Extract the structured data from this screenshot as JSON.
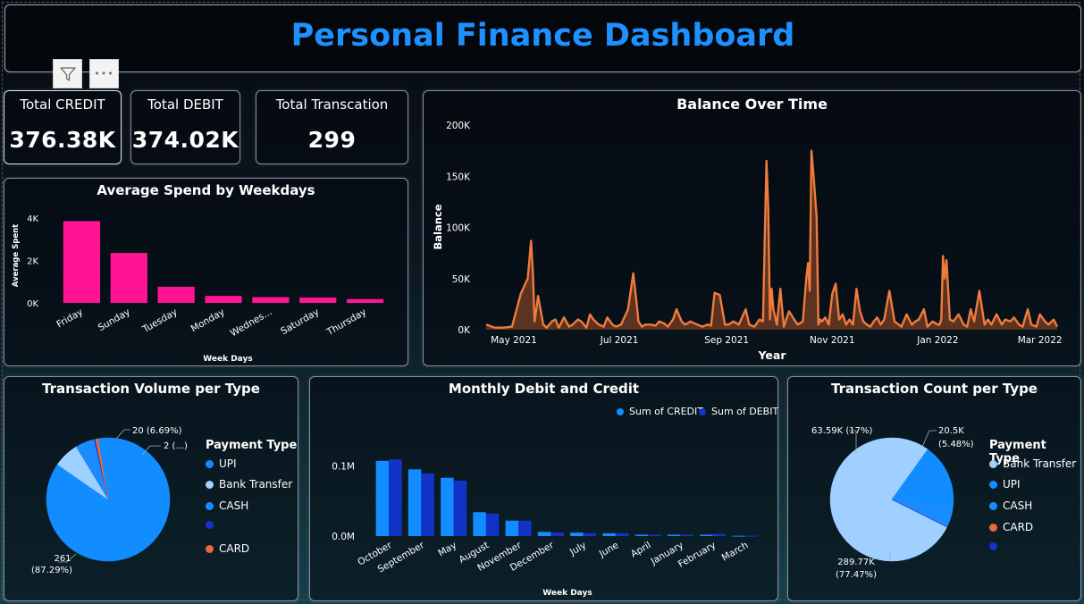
{
  "header": {
    "title": "Personal Finance Dashboard"
  },
  "toolbar": {
    "filter_icon": "filter-icon",
    "more_icon": "more-options-icon",
    "more_label": "•••"
  },
  "kpis": {
    "credit": {
      "label": "Total CREDIT",
      "value": "376.38K"
    },
    "debit": {
      "label": "Total DEBIT",
      "value": "374.02K"
    },
    "transactions": {
      "label": "Total Transcation",
      "value": "299"
    }
  },
  "colors": {
    "title": "#1e90ff",
    "pink": "#ff1493",
    "orange": "#f07b3c",
    "upi": "#118dff",
    "bank": "#9fd0ff",
    "cash": "#1a8cff",
    "debit": "#1233c8",
    "card": "#e8693a"
  },
  "chart_data": [
    {
      "id": "weekday",
      "type": "bar",
      "title": "Average Spend by Weekdays",
      "xlabel": "Week Days",
      "ylabel": "Average Spent",
      "categories": [
        "Friday",
        "Sunday",
        "Tuesday",
        "Monday",
        "Wednes...",
        "Saturday",
        "Thursday"
      ],
      "values": [
        3850,
        2350,
        760,
        330,
        270,
        250,
        180
      ],
      "ylim": [
        0,
        4500
      ],
      "yticks": [
        0,
        2000,
        4000
      ],
      "ytick_labels": [
        "0K",
        "2K",
        "4K"
      ]
    },
    {
      "id": "balance",
      "type": "area",
      "title": "Balance Over Time",
      "xlabel": "Year",
      "ylabel": "Balance",
      "ylim": [
        0,
        200000
      ],
      "yticks": [
        0,
        50000,
        100000,
        150000,
        200000
      ],
      "ytick_labels": [
        "0K",
        "50K",
        "100K",
        "150K",
        "200K"
      ],
      "xlim": [
        0,
        330
      ],
      "xticks": [
        16,
        77,
        139,
        200,
        261,
        320
      ],
      "xtick_labels": [
        "May 2021",
        "Jul 2021",
        "Sep 2021",
        "Nov 2021",
        "Jan 2022",
        "Mar 2022"
      ],
      "x": [
        0,
        5,
        10,
        15,
        20,
        24,
        26,
        27,
        28,
        29,
        30,
        33,
        35,
        38,
        40,
        42,
        45,
        48,
        50,
        53,
        55,
        58,
        60,
        62,
        65,
        68,
        70,
        73,
        75,
        78,
        82,
        85,
        87,
        88,
        90,
        92,
        95,
        98,
        100,
        103,
        105,
        108,
        110,
        113,
        115,
        118,
        122,
        125,
        128,
        130,
        132,
        135,
        138,
        140,
        143,
        146,
        150,
        152,
        155,
        158,
        160,
        161,
        162,
        163,
        164,
        165,
        166,
        168,
        170,
        172,
        175,
        178,
        180,
        183,
        185,
        186,
        187,
        188,
        189,
        191,
        192,
        193,
        194,
        196,
        198,
        200,
        202,
        204,
        206,
        208,
        210,
        212,
        214,
        216,
        218,
        220,
        222,
        224,
        226,
        228,
        230,
        233,
        236,
        240,
        243,
        246,
        248,
        250,
        253,
        255,
        258,
        261,
        262,
        263,
        264,
        265,
        266,
        268,
        270,
        273,
        276,
        278,
        280,
        282,
        285,
        288,
        290,
        292,
        295,
        298,
        300,
        303,
        305,
        308,
        310,
        313,
        315,
        318,
        320,
        323,
        325,
        328,
        330
      ],
      "y": [
        5000,
        2000,
        2000,
        3000,
        35000,
        50000,
        87000,
        55000,
        8000,
        20000,
        33000,
        5000,
        2000,
        8000,
        10000,
        2000,
        12000,
        3000,
        5000,
        10000,
        8000,
        2000,
        15000,
        10000,
        5000,
        3000,
        12000,
        5000,
        3000,
        5000,
        20000,
        55000,
        25000,
        8000,
        3000,
        5000,
        5000,
        4000,
        8000,
        6000,
        3000,
        10000,
        20000,
        8000,
        5000,
        8000,
        5000,
        3000,
        5000,
        4000,
        36000,
        34000,
        5000,
        5000,
        8000,
        5000,
        20000,
        5000,
        3000,
        10000,
        8000,
        90000,
        165000,
        120000,
        10000,
        40000,
        20000,
        5000,
        40000,
        3000,
        18000,
        10000,
        5000,
        8000,
        50000,
        65000,
        38000,
        175000,
        155000,
        110000,
        5000,
        10000,
        8000,
        12000,
        5000,
        35000,
        45000,
        10000,
        15000,
        5000,
        10000,
        5000,
        40000,
        18000,
        8000,
        5000,
        3000,
        8000,
        12000,
        5000,
        10000,
        38000,
        8000,
        3000,
        15000,
        5000,
        8000,
        10000,
        20000,
        3000,
        8000,
        5000,
        5000,
        10000,
        72000,
        50000,
        68000,
        10000,
        8000,
        15000,
        5000,
        3000,
        20000,
        8000,
        38000,
        5000,
        10000,
        5000,
        15000,
        5000,
        10000,
        8000,
        12000,
        5000,
        3000,
        20000,
        5000,
        3000,
        15000,
        8000,
        5000,
        10000,
        3000
      ]
    },
    {
      "id": "volume",
      "type": "pie",
      "title": "Transaction Volume per Type",
      "legend_title": "Payment Type",
      "legend": [
        "UPI",
        "Bank Transfer",
        "CASH",
        "",
        "CARD"
      ],
      "slices": [
        {
          "name": "UPI",
          "value": 261,
          "pct": 87.29,
          "label": "261",
          "label2": "(87.29%)"
        },
        {
          "name": "Bank Transfer",
          "value": 20,
          "pct": 6.69,
          "label": "20 (6.69%)"
        },
        {
          "name": "CASH",
          "value": 15,
          "pct": 5.02
        },
        {
          "name": "",
          "value": 1,
          "pct": 0.33
        },
        {
          "name": "CARD",
          "value": 2,
          "pct": 0.67,
          "label": "2 (...)"
        }
      ]
    },
    {
      "id": "monthly",
      "type": "bar",
      "title": "Monthly Debit and Credit",
      "xlabel": "Week Days",
      "ylim": [
        0,
        0.15
      ],
      "yticks": [
        0,
        0.1
      ],
      "ytick_labels": [
        "0.0M",
        "0.1M"
      ],
      "categories": [
        "October",
        "September",
        "May",
        "August",
        "November",
        "December",
        "July",
        "June",
        "April",
        "January",
        "February",
        "March"
      ],
      "series": [
        {
          "name": "Sum of CREDIT",
          "values": [
            0.107,
            0.095,
            0.083,
            0.034,
            0.022,
            0.006,
            0.005,
            0.004,
            0.002,
            0.002,
            0.002,
            0.0005
          ]
        },
        {
          "name": "Sum of DEBIT",
          "values": [
            0.109,
            0.089,
            0.079,
            0.032,
            0.022,
            0.005,
            0.004,
            0.004,
            0.002,
            0.002,
            0.003,
            0.0005
          ]
        }
      ]
    },
    {
      "id": "count",
      "type": "pie",
      "title": "Transaction Count per Type",
      "legend_title": "Payment Type",
      "legend": [
        "Bank Transfer",
        "UPI",
        "CASH",
        "CARD",
        ""
      ],
      "slices": [
        {
          "name": "Bank Transfer",
          "value": 289.77,
          "pct": 77.47,
          "label": "289.77K",
          "label2": "(77.47%)"
        },
        {
          "name": "UPI",
          "value": 63.59,
          "pct": 17.0,
          "label": "63.59K (17%)"
        },
        {
          "name": "CASH",
          "value": 20.5,
          "pct": 5.48,
          "label": "20.5K",
          "label2": "(5.48%)"
        },
        {
          "name": "CARD",
          "value": 0.1,
          "pct": 0.03
        },
        {
          "name": "",
          "value": 0.05,
          "pct": 0.02
        }
      ]
    }
  ]
}
